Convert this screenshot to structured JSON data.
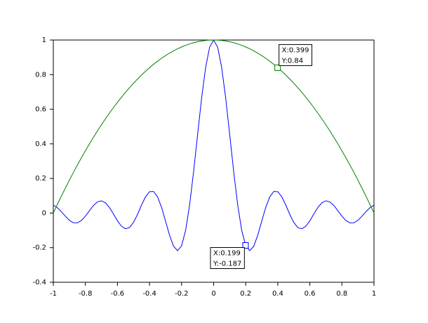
{
  "chart_data": {
    "type": "line",
    "x": [
      -1,
      -0.975,
      -0.95,
      -0.925,
      -0.9,
      -0.875,
      -0.85,
      -0.825,
      -0.8,
      -0.775,
      -0.75,
      -0.725,
      -0.7,
      -0.675,
      -0.65,
      -0.625,
      -0.6,
      -0.575,
      -0.55,
      -0.525,
      -0.5,
      -0.475,
      -0.45,
      -0.425,
      -0.4,
      -0.375,
      -0.35,
      -0.325,
      -0.3,
      -0.275,
      -0.25,
      -0.225,
      -0.2,
      -0.175,
      -0.15,
      -0.125,
      -0.1,
      -0.075,
      -0.05,
      -0.025,
      0,
      0.025,
      0.05,
      0.075,
      0.1,
      0.125,
      0.15,
      0.175,
      0.2,
      0.225,
      0.25,
      0.275,
      0.3,
      0.325,
      0.35,
      0.375,
      0.4,
      0.425,
      0.45,
      0.475,
      0.5,
      0.525,
      0.55,
      0.575,
      0.6,
      0.625,
      0.65,
      0.675,
      0.7,
      0.725,
      0.75,
      0.775,
      0.8,
      0.825,
      0.85,
      0.875,
      0.9,
      0.925,
      0.95,
      0.975,
      1
    ],
    "series": [
      {
        "color": "#0000ff",
        "values": [
          0.0456,
          0.0311,
          0.0079,
          -0.0183,
          -0.0417,
          -0.0562,
          -0.0566,
          -0.0431,
          -0.018,
          0.0133,
          0.0434,
          0.0645,
          0.0708,
          0.0595,
          0.0323,
          -0.0053,
          -0.0447,
          -0.0761,
          -0.0909,
          -0.0838,
          -0.0544,
          -0.0079,
          0.0458,
          0.0939,
          0.1237,
          0.1251,
          0.0939,
          0.0331,
          -0.0466,
          -0.1283,
          -0.1918,
          -0.2172,
          -0.1892,
          -0.1002,
          0.047,
          0.2394,
          0.4546,
          0.665,
          0.8415,
          0.9589,
          1,
          0.9589,
          0.8415,
          0.665,
          0.4546,
          0.2394,
          0.047,
          -0.1002,
          -0.1892,
          -0.2172,
          -0.1918,
          -0.1283,
          -0.0466,
          0.0331,
          0.0939,
          0.1251,
          0.1237,
          0.0939,
          0.0458,
          -0.0079,
          -0.0544,
          -0.0838,
          -0.0909,
          -0.0761,
          -0.0447,
          -0.0053,
          0.0323,
          0.0595,
          0.0708,
          0.0645,
          0.0434,
          0.0133,
          -0.018,
          -0.0431,
          -0.0566,
          -0.0562,
          -0.0417,
          -0.0183,
          0.0079,
          0.0311,
          0.0456
        ]
      },
      {
        "color": "#008000",
        "values": [
          0,
          0.0494,
          0.0975,
          0.1444,
          0.19,
          0.2344,
          0.2775,
          0.3194,
          0.36,
          0.3994,
          0.4375,
          0.4744,
          0.51,
          0.5444,
          0.5775,
          0.6094,
          0.64,
          0.6694,
          0.6975,
          0.7244,
          0.75,
          0.7744,
          0.7975,
          0.8194,
          0.84,
          0.8594,
          0.8775,
          0.8944,
          0.91,
          0.9244,
          0.9375,
          0.9494,
          0.96,
          0.9694,
          0.9775,
          0.9844,
          0.99,
          0.9944,
          0.9975,
          0.9994,
          1,
          0.9994,
          0.9975,
          0.9944,
          0.99,
          0.9844,
          0.9775,
          0.9694,
          0.96,
          0.9494,
          0.9375,
          0.9244,
          0.91,
          0.8944,
          0.8775,
          0.8594,
          0.84,
          0.8194,
          0.7975,
          0.7744,
          0.75,
          0.7244,
          0.6975,
          0.6694,
          0.64,
          0.6094,
          0.5775,
          0.5444,
          0.51,
          0.4744,
          0.4375,
          0.3994,
          0.36,
          0.3194,
          0.2775,
          0.2344,
          0.19,
          0.1444,
          0.0975,
          0.0494,
          0
        ]
      }
    ],
    "xlim": [
      -1,
      1
    ],
    "ylim": [
      -0.4,
      1
    ],
    "xticks": [
      -1,
      -0.8,
      -0.6,
      -0.4,
      -0.2,
      0,
      0.2,
      0.4,
      0.6,
      0.8,
      1
    ],
    "yticks": [
      -0.4,
      -0.2,
      0,
      0.2,
      0.4,
      0.6,
      0.8,
      1
    ],
    "annotations": [
      {
        "series": 1,
        "x": 0.399,
        "y": 0.84,
        "lines": [
          "X:0.399",
          "Y:0.84"
        ]
      },
      {
        "series": 0,
        "x": 0.199,
        "y": -0.187,
        "lines": [
          "X:0.199",
          "Y:-0.187"
        ]
      }
    ]
  }
}
